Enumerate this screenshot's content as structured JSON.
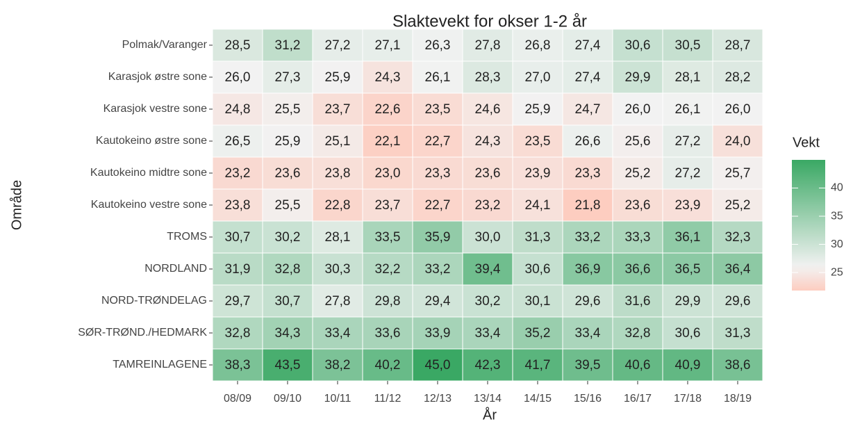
{
  "chart_data": {
    "type": "heatmap",
    "title": "Slaktevekt for okser 1-2 år",
    "xlabel": "År",
    "ylabel": "Område",
    "x": [
      "08/09",
      "09/10",
      "10/11",
      "11/12",
      "12/13",
      "13/14",
      "14/15",
      "15/16",
      "16/17",
      "17/18",
      "18/19"
    ],
    "y": [
      "Polmak/Varanger",
      "Karasjok østre sone",
      "Karasjok vestre sone",
      "Kautokeino østre sone",
      "Kautokeino midtre sone",
      "Kautokeino vestre sone",
      "TROMS",
      "NORDLAND",
      "NORD-TRØNDELAG",
      "SØR-TRØND./HEDMARK",
      "TAMREINLAGENE"
    ],
    "values": [
      [
        28.5,
        31.2,
        27.2,
        27.1,
        26.3,
        27.8,
        26.8,
        27.4,
        30.6,
        30.5,
        28.7
      ],
      [
        26.0,
        27.3,
        25.9,
        24.3,
        26.1,
        28.3,
        27.0,
        27.4,
        29.9,
        28.1,
        28.2
      ],
      [
        24.8,
        25.5,
        23.7,
        22.6,
        23.5,
        24.6,
        25.9,
        24.7,
        26.0,
        26.1,
        26.0
      ],
      [
        26.5,
        25.9,
        25.1,
        22.1,
        22.7,
        24.3,
        23.5,
        26.6,
        25.6,
        27.2,
        24.0
      ],
      [
        23.2,
        23.6,
        23.8,
        23.0,
        23.3,
        23.6,
        23.9,
        23.3,
        25.2,
        27.2,
        25.7
      ],
      [
        23.8,
        25.5,
        22.8,
        23.7,
        22.7,
        23.2,
        24.1,
        21.8,
        23.6,
        23.9,
        25.2
      ],
      [
        30.7,
        30.2,
        28.1,
        33.5,
        35.9,
        30.0,
        31.3,
        33.2,
        33.3,
        36.1,
        32.3
      ],
      [
        31.9,
        32.8,
        30.3,
        32.2,
        33.2,
        39.4,
        30.6,
        36.9,
        36.6,
        36.5,
        36.4
      ],
      [
        29.7,
        30.7,
        27.8,
        29.8,
        29.4,
        30.2,
        30.1,
        29.6,
        31.6,
        29.9,
        29.6
      ],
      [
        32.8,
        34.3,
        33.4,
        33.6,
        33.9,
        33.4,
        35.2,
        33.4,
        32.8,
        30.6,
        31.3
      ],
      [
        38.3,
        43.5,
        38.2,
        40.2,
        45.0,
        42.3,
        41.7,
        39.5,
        40.6,
        40.9,
        38.6
      ]
    ],
    "value_labels": [
      [
        "28,5",
        "31,2",
        "27,2",
        "27,1",
        "26,3",
        "27,8",
        "26,8",
        "27,4",
        "30,6",
        "30,5",
        "28,7"
      ],
      [
        "26,0",
        "27,3",
        "25,9",
        "24,3",
        "26,1",
        "28,3",
        "27,0",
        "27,4",
        "29,9",
        "28,1",
        "28,2"
      ],
      [
        "24,8",
        "25,5",
        "23,7",
        "22,6",
        "23,5",
        "24,6",
        "25,9",
        "24,7",
        "26,0",
        "26,1",
        "26,0"
      ],
      [
        "26,5",
        "25,9",
        "25,1",
        "22,1",
        "22,7",
        "24,3",
        "23,5",
        "26,6",
        "25,6",
        "27,2",
        "24,0"
      ],
      [
        "23,2",
        "23,6",
        "23,8",
        "23,0",
        "23,3",
        "23,6",
        "23,9",
        "23,3",
        "25,2",
        "27,2",
        "25,7"
      ],
      [
        "23,8",
        "25,5",
        "22,8",
        "23,7",
        "22,7",
        "23,2",
        "24,1",
        "21,8",
        "23,6",
        "23,9",
        "25,2"
      ],
      [
        "30,7",
        "30,2",
        "28,1",
        "33,5",
        "35,9",
        "30,0",
        "31,3",
        "33,2",
        "33,3",
        "36,1",
        "32,3"
      ],
      [
        "31,9",
        "32,8",
        "30,3",
        "32,2",
        "33,2",
        "39,4",
        "30,6",
        "36,9",
        "36,6",
        "36,5",
        "36,4"
      ],
      [
        "29,7",
        "30,7",
        "27,8",
        "29,8",
        "29,4",
        "30,2",
        "30,1",
        "29,6",
        "31,6",
        "29,9",
        "29,6"
      ],
      [
        "32,8",
        "34,3",
        "33,4",
        "33,6",
        "33,9",
        "33,4",
        "35,2",
        "33,4",
        "32,8",
        "30,6",
        "31,3"
      ],
      [
        "38,3",
        "43,5",
        "38,2",
        "40,2",
        "45,0",
        "42,3",
        "41,7",
        "39,5",
        "40,6",
        "40,9",
        "38,6"
      ]
    ],
    "legend_title": "Vekt",
    "clim": [
      21.8,
      45.0
    ],
    "cticks": [
      25,
      30,
      35,
      40
    ],
    "colorscale": {
      "low": "#fdcdc0",
      "mid": "#f2f2f2",
      "high": "#3aa864",
      "midpoint": 26
    }
  }
}
